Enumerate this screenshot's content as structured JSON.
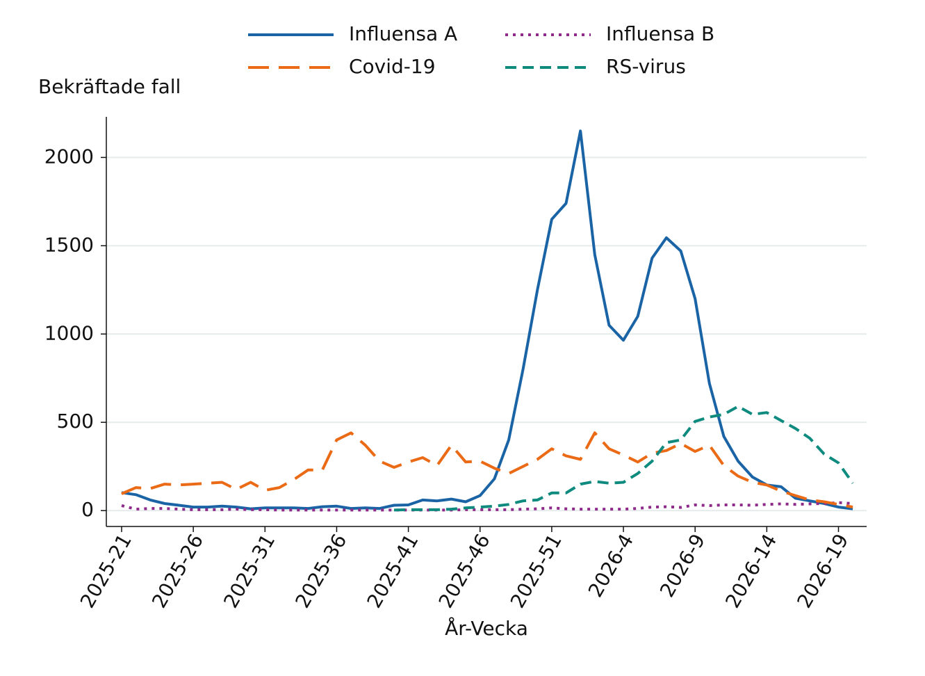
{
  "chart_data": {
    "type": "line",
    "y_label": "Bekräftade fall",
    "x_label": "År-Vecka",
    "categories": [
      "2025-21",
      null,
      null,
      null,
      null,
      "2025-26",
      null,
      null,
      null,
      null,
      "2025-31",
      null,
      null,
      null,
      null,
      "2025-36",
      null,
      null,
      null,
      null,
      "2025-41",
      null,
      null,
      null,
      null,
      "2025-46",
      null,
      null,
      null,
      null,
      "2025-51",
      null,
      null,
      null,
      null,
      "2026-4",
      null,
      null,
      null,
      null,
      "2026-9",
      null,
      null,
      null,
      null,
      "2026-14",
      null,
      null,
      null,
      null,
      "2026-19",
      null
    ],
    "series": [
      {
        "name": "Influensa A",
        "color": "#1a64a6",
        "dash": "solid",
        "values": [
          102,
          90,
          60,
          40,
          30,
          20,
          20,
          25,
          20,
          10,
          15,
          15,
          15,
          12,
          22,
          25,
          12,
          15,
          12,
          30,
          32,
          60,
          55,
          65,
          50,
          85,
          180,
          400,
          800,
          1250,
          1650,
          1740,
          2150,
          1450,
          1050,
          965,
          1100,
          1430,
          1545,
          1470,
          1200,
          720,
          420,
          280,
          190,
          145,
          135,
          70,
          55,
          40,
          20,
          10
        ]
      },
      {
        "name": "Influensa B",
        "color": "#8e2a8a",
        "dash": "dot",
        "values": [
          28,
          8,
          12,
          12,
          8,
          5,
          5,
          5,
          8,
          5,
          5,
          3,
          3,
          3,
          3,
          3,
          3,
          3,
          3,
          3,
          3,
          3,
          3,
          3,
          5,
          5,
          5,
          5,
          8,
          10,
          15,
          10,
          8,
          8,
          8,
          8,
          12,
          20,
          22,
          18,
          32,
          28,
          32,
          32,
          30,
          35,
          38,
          35,
          38,
          40,
          45,
          40
        ]
      },
      {
        "name": "Covid-19",
        "color": "#ea6a16",
        "dash": "longdash",
        "values": [
          95,
          130,
          125,
          150,
          145,
          150,
          155,
          160,
          120,
          160,
          115,
          130,
          175,
          230,
          230,
          400,
          440,
          370,
          280,
          245,
          275,
          300,
          255,
          370,
          275,
          280,
          240,
          210,
          250,
          290,
          350,
          310,
          290,
          440,
          350,
          315,
          275,
          325,
          340,
          380,
          335,
          370,
          255,
          195,
          160,
          145,
          110,
          85,
          60,
          50,
          35,
          20
        ]
      },
      {
        "name": "RS-virus",
        "color": "#0e8a7e",
        "dash": "shortdash",
        "values": [
          null,
          null,
          null,
          null,
          null,
          null,
          null,
          null,
          null,
          null,
          null,
          null,
          null,
          null,
          null,
          null,
          null,
          null,
          null,
          3,
          5,
          5,
          5,
          8,
          15,
          20,
          25,
          35,
          55,
          60,
          100,
          100,
          150,
          165,
          155,
          160,
          210,
          280,
          385,
          400,
          505,
          530,
          545,
          590,
          545,
          555,
          510,
          465,
          410,
          320,
          270,
          155
        ]
      }
    ],
    "ylim": [
      -90,
      2230
    ],
    "yticks": [
      0,
      500,
      1000,
      1500,
      2000
    ],
    "grid": true,
    "legend": "top"
  }
}
